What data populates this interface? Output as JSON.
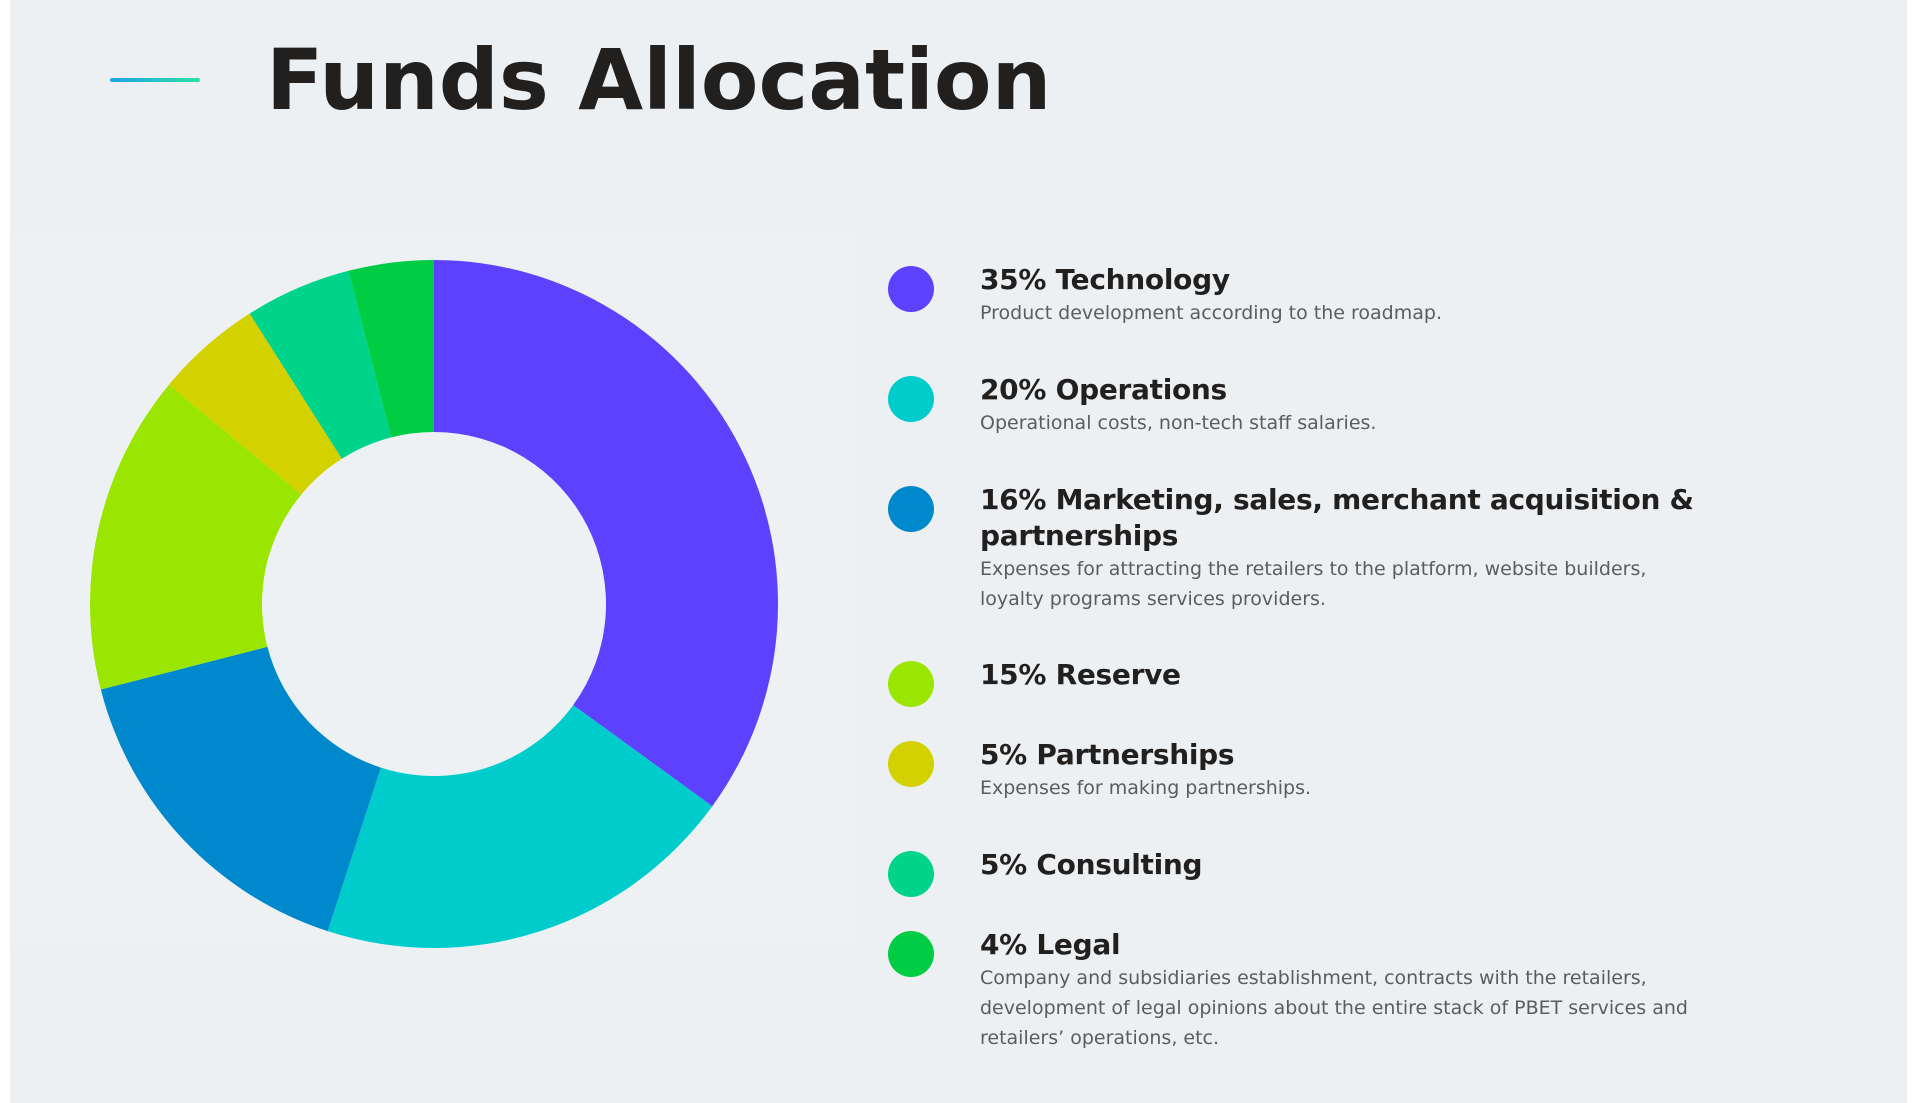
{
  "title": "Funds Allocation",
  "chart_data": {
    "type": "pie",
    "title": "Funds Allocation",
    "donut": true,
    "start_angle_deg": 0,
    "direction": "clockwise",
    "segments": [
      {
        "name": "Technology",
        "value": 35,
        "color": "#5e41ff"
      },
      {
        "name": "Operations",
        "value": 20,
        "color": "#00cccc"
      },
      {
        "name": "Marketing, sales, merchant acquisition & partnerships",
        "value": 16,
        "color": "#0088cc"
      },
      {
        "name": "Reserve",
        "value": 15,
        "color": "#9be600"
      },
      {
        "name": "Partnerships",
        "value": 5,
        "color": "#d4d100"
      },
      {
        "name": "Consulting",
        "value": 5,
        "color": "#00d38a"
      },
      {
        "name": "Legal",
        "value": 4,
        "color": "#00cc44"
      }
    ]
  },
  "legend": [
    {
      "label": "35% Technology",
      "description": "Product development according to the roadmap.",
      "color": "#5e41ff"
    },
    {
      "label": "20% Operations",
      "description": "Operational costs, non-tech staff salaries.",
      "color": "#00cccc"
    },
    {
      "label": "16% Marketing, sales, merchant acquisition & partnerships",
      "description": "Expenses for attracting the retailers to the platform, website builders, loyalty programs services providers.",
      "color": "#0088cc"
    },
    {
      "label": "15% Reserve",
      "description": "",
      "color": "#9be600"
    },
    {
      "label": "5% Partnerships",
      "description": "Expenses for making partnerships.",
      "color": "#d4d100"
    },
    {
      "label": "5% Consulting",
      "description": "",
      "color": "#00d38a"
    },
    {
      "label": "4% Legal",
      "description": "Company and subsidiaries establishment, contracts with the retailers, development of legal opinions about the entire stack of PBET services and retailers’ operations, etc.",
      "color": "#00cc44"
    }
  ],
  "colors": {
    "background": "#edf0f3",
    "title": "#221f1f",
    "accent_line_start": "#1fa3e6",
    "accent_line_end": "#2ee0a0"
  }
}
